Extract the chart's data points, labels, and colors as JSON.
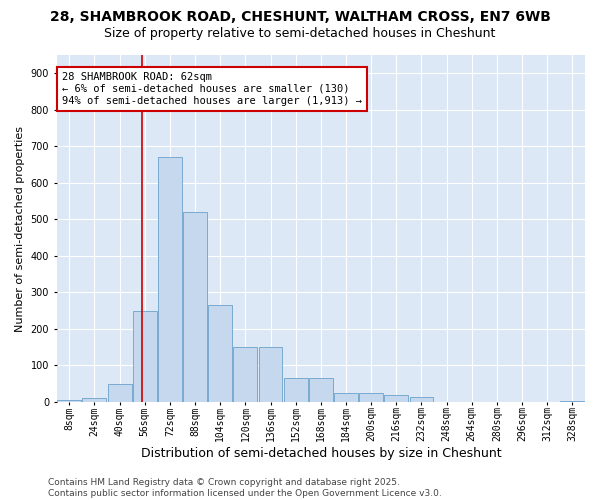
{
  "title_line1": "28, SHAMBROOK ROAD, CHESHUNT, WALTHAM CROSS, EN7 6WB",
  "title_line2": "Size of property relative to semi-detached houses in Cheshunt",
  "xlabel": "Distribution of semi-detached houses by size in Cheshunt",
  "ylabel": "Number of semi-detached properties",
  "bin_labels": [
    "8sqm",
    "24sqm",
    "40sqm",
    "56sqm",
    "72sqm",
    "88sqm",
    "104sqm",
    "120sqm",
    "136sqm",
    "152sqm",
    "168sqm",
    "184sqm",
    "200sqm",
    "216sqm",
    "232sqm",
    "248sqm",
    "264sqm",
    "280sqm",
    "296sqm",
    "312sqm",
    "328sqm"
  ],
  "bar_values": [
    5,
    10,
    50,
    250,
    670,
    520,
    265,
    150,
    150,
    65,
    65,
    25,
    25,
    20,
    15,
    0,
    0,
    0,
    0,
    0,
    2
  ],
  "bar_color": "#c5d8ee",
  "bar_edge_color": "#7aaad0",
  "property_line_x": 3.5,
  "annotation_text": "28 SHAMBROOK ROAD: 62sqm\n← 6% of semi-detached houses are smaller (130)\n94% of semi-detached houses are larger (1,913) →",
  "annotation_box_color": "#ffffff",
  "annotation_box_edge": "#cc0000",
  "vline_color": "#cc0000",
  "ylim": [
    0,
    950
  ],
  "yticks": [
    0,
    100,
    200,
    300,
    400,
    500,
    600,
    700,
    800,
    900
  ],
  "background_color": "#dce8f5",
  "footer_text": "Contains HM Land Registry data © Crown copyright and database right 2025.\nContains public sector information licensed under the Open Government Licence v3.0.",
  "title_fontsize": 10,
  "subtitle_fontsize": 9,
  "xlabel_fontsize": 9,
  "ylabel_fontsize": 8,
  "tick_fontsize": 7,
  "annotation_fontsize": 7.5,
  "footer_fontsize": 6.5
}
